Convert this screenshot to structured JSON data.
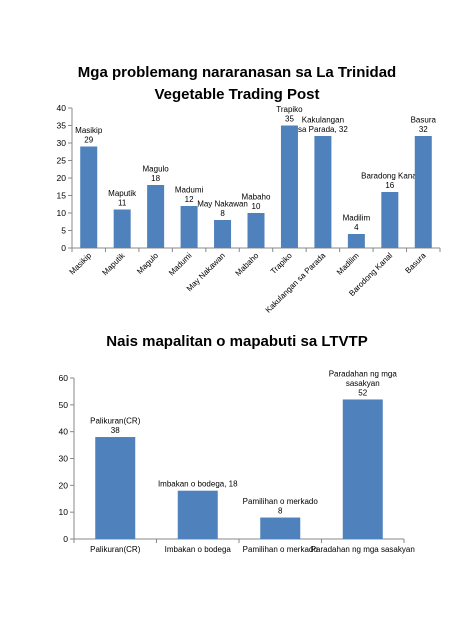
{
  "chart_data": [
    {
      "type": "bar",
      "title": "Mga problemang nararanasan sa La Trinidad",
      "subtitle": "Vegetable Trading Post",
      "categories": [
        "Masikip",
        "Maputik",
        "Magulo",
        "Madumi",
        "May Nakawan",
        "Mabaho",
        "Trapiko",
        "Kakulangan sa Parada",
        "Madilim",
        "Barodong Kanal",
        "Basura"
      ],
      "values": [
        29,
        11,
        18,
        12,
        8,
        10,
        35,
        32,
        4,
        16,
        32
      ],
      "data_labels": [
        [
          "Masikip",
          "29"
        ],
        [
          "Maputik",
          "11"
        ],
        [
          "Magulo",
          "18"
        ],
        [
          "Madumi",
          "12"
        ],
        [
          "May Nakawan",
          "8"
        ],
        [
          "Mabaho",
          "10"
        ],
        [
          "Trapiko",
          "35"
        ],
        [
          "Kakulangan",
          "sa Parada, 32"
        ],
        [
          "Madilim",
          "4"
        ],
        [
          "Baradong Kanal",
          "16"
        ],
        [
          "Basura",
          "32"
        ]
      ],
      "ylim": [
        0,
        40
      ],
      "yticks": [
        0,
        5,
        10,
        15,
        20,
        25,
        30,
        35,
        40
      ],
      "grid": false,
      "bar_color": "#4f81bd"
    },
    {
      "type": "bar",
      "title": "Nais mapalitan o mapabuti sa LTVTP",
      "categories": [
        "Palikuran(CR)",
        "Imbakan o bodega",
        "Pamilihan o merkado",
        "Paradahan ng mga sasakyan"
      ],
      "values": [
        38,
        18,
        8,
        52
      ],
      "data_labels": [
        [
          "Palikuran(CR)",
          "38"
        ],
        [
          "Imbakan o bodega, 18"
        ],
        [
          "Pamilihan o merkado",
          "8"
        ],
        [
          "Paradahan ng mga",
          "sasakyan",
          "52"
        ]
      ],
      "ylim": [
        0,
        60
      ],
      "yticks": [
        0,
        10,
        20,
        30,
        40,
        50,
        60
      ],
      "grid": false,
      "bar_color": "#4f81bd"
    }
  ]
}
